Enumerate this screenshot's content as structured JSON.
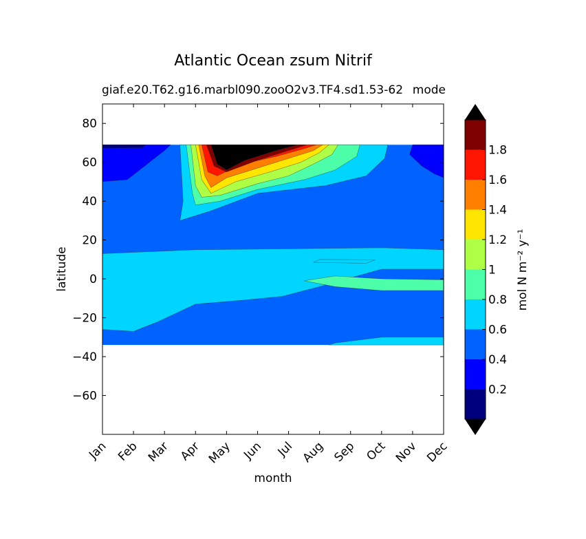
{
  "chart_data": {
    "type": "filled-contour",
    "title": "Atlantic Ocean zsum Nitrif",
    "subtitle": "giaf.e20.T62.g16.marbl090.zooO2v3.TF4.sd1.53-62",
    "subtitle_right": "mode",
    "xlabel": "month",
    "ylabel": "latitude",
    "x_ticks": [
      "Jan",
      "Feb",
      "Mar",
      "Apr",
      "May",
      "Jun",
      "Jul",
      "Aug",
      "Sep",
      "Oct",
      "Nov",
      "Dec"
    ],
    "y_ticks": [
      80,
      60,
      40,
      20,
      0,
      -20,
      -40,
      -60
    ],
    "y_tick_labels": [
      "80",
      "60",
      "40",
      "20",
      "0",
      "−20",
      "−40",
      "−60"
    ],
    "ylim": [
      -80,
      90
    ],
    "xlim": [
      1,
      12
    ],
    "data_lat_range": [
      -34,
      69
    ],
    "colorbar": {
      "label": "mol N m⁻² y⁻¹",
      "levels": [
        0,
        0.2,
        0.4,
        0.6,
        0.8,
        1.0,
        1.2,
        1.4,
        1.6,
        1.8,
        2.0
      ],
      "tick_labels": [
        "0.2",
        "0.4",
        "0.6",
        "0.8",
        "1",
        "1.2",
        "1.4",
        "1.6",
        "1.8"
      ],
      "colors": [
        "#00007f",
        "#0000ff",
        "#0063ff",
        "#00d5ff",
        "#4dffa9",
        "#b0ff47",
        "#ffe600",
        "#ff7f00",
        "#ff1600",
        "#7f0000"
      ],
      "extend": "both",
      "over_color": "#000000",
      "under_color": "#000000"
    },
    "regions": [
      {
        "level_index": 2,
        "description": "base field, southern and northern oceans"
      },
      {
        "level_index": 1,
        "description": "high latitudes Jan-Mar and Nov-Dec, 50-69N"
      },
      {
        "level_index": 3,
        "description": "subtropics and tropics, -34 to 12N; northern bloom rim"
      },
      {
        "level_index": 4,
        "description": "equatorial band Aug-Dec; bloom rim 38-65N"
      },
      {
        "level_index": 5,
        "description": "bloom 40-68N"
      },
      {
        "level_index": 6,
        "description": "bloom 42-68N"
      },
      {
        "level_index": 7,
        "description": "bloom 43-68N"
      },
      {
        "level_index": 8,
        "description": "bloom 44-69N"
      },
      {
        "level_index": 9,
        "description": "bloom 46-69N"
      },
      {
        "level_index": 10,
        "description": "bloom core May-Aug, >2.0"
      }
    ]
  }
}
